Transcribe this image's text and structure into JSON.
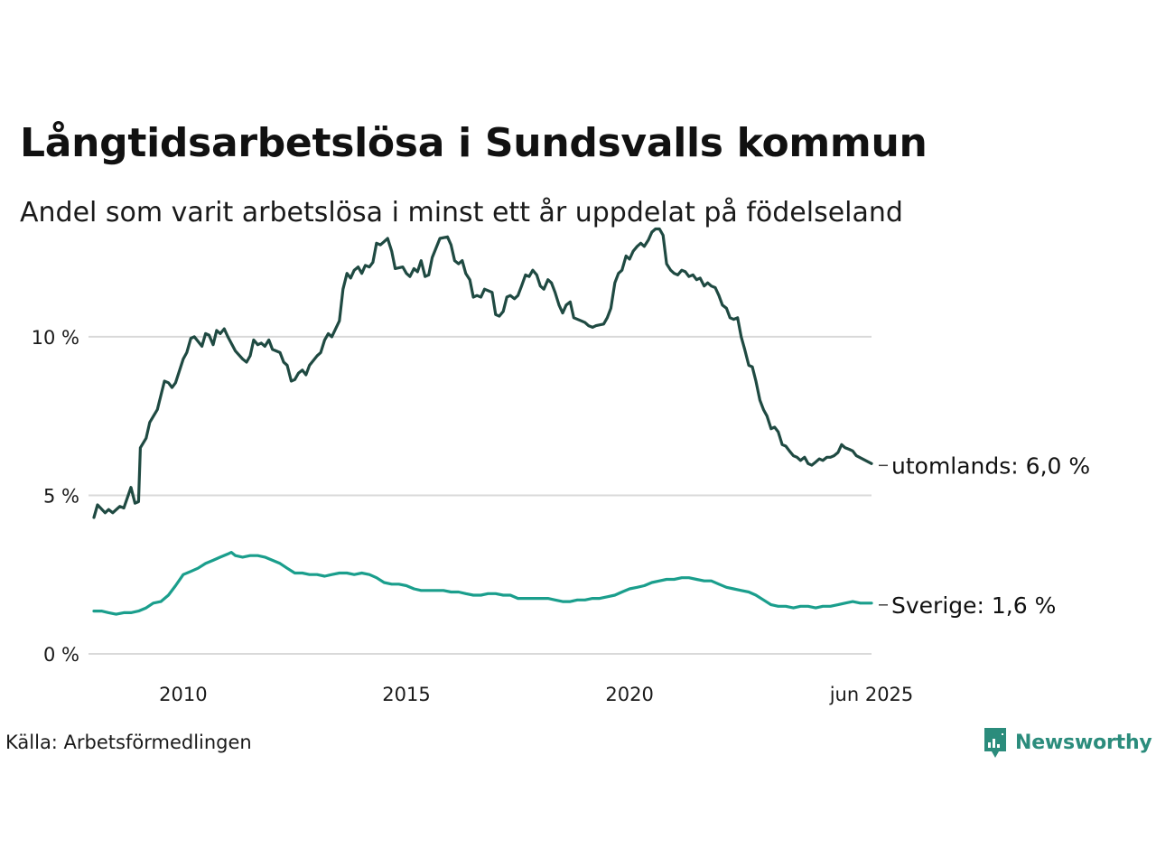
{
  "colors": {
    "utomlands": "#1f4a42",
    "sverige": "#1a9e8c",
    "grid": "#d9d9d9",
    "brand": "#2b8c7c"
  },
  "footer": {
    "source": "Källa: Arbetsförmedlingen",
    "brand": "Newsworthy",
    "brand_icon": "chart-bubble-icon"
  },
  "chart_data": {
    "type": "line",
    "title": "Långtidsarbetslösa i Sundsvalls kommun",
    "subtitle": "Andel som varit arbetslösa i minst ett år uppdelat på födelseland",
    "x_ticks": [
      {
        "x": 2010,
        "label": "2010"
      },
      {
        "x": 2015,
        "label": "2015"
      },
      {
        "x": 2020,
        "label": "2020"
      },
      {
        "x": 2025.42,
        "label": "jun 2025"
      }
    ],
    "y_ticks": [
      {
        "y": 0,
        "label": "0 %"
      },
      {
        "y": 5,
        "label": "5 %"
      },
      {
        "y": 10,
        "label": "10 %"
      }
    ],
    "xlim": [
      2008.0,
      2025.42
    ],
    "ylim": [
      0,
      13.5
    ],
    "grid": true,
    "series": [
      {
        "key": "utomlands",
        "end_label": "utomlands: 6,0 %",
        "points": [
          [
            2008.0,
            4.3
          ],
          [
            2008.08,
            4.7
          ],
          [
            2008.25,
            4.45
          ],
          [
            2008.33,
            4.55
          ],
          [
            2008.42,
            4.45
          ],
          [
            2008.58,
            4.65
          ],
          [
            2008.67,
            4.6
          ],
          [
            2008.83,
            5.25
          ],
          [
            2008.92,
            4.75
          ],
          [
            2009.0,
            4.8
          ],
          [
            2009.04,
            6.5
          ],
          [
            2009.17,
            6.8
          ],
          [
            2009.25,
            7.3
          ],
          [
            2009.42,
            7.7
          ],
          [
            2009.58,
            8.6
          ],
          [
            2009.67,
            8.55
          ],
          [
            2009.75,
            8.4
          ],
          [
            2009.83,
            8.55
          ],
          [
            2010.0,
            9.3
          ],
          [
            2010.08,
            9.5
          ],
          [
            2010.17,
            9.95
          ],
          [
            2010.25,
            10.0
          ],
          [
            2010.42,
            9.7
          ],
          [
            2010.5,
            10.1
          ],
          [
            2010.58,
            10.05
          ],
          [
            2010.67,
            9.75
          ],
          [
            2010.75,
            10.2
          ],
          [
            2010.83,
            10.1
          ],
          [
            2010.92,
            10.25
          ],
          [
            2011.0,
            10.0
          ],
          [
            2011.17,
            9.55
          ],
          [
            2011.33,
            9.3
          ],
          [
            2011.42,
            9.2
          ],
          [
            2011.5,
            9.4
          ],
          [
            2011.58,
            9.9
          ],
          [
            2011.67,
            9.75
          ],
          [
            2011.75,
            9.8
          ],
          [
            2011.83,
            9.7
          ],
          [
            2011.92,
            9.9
          ],
          [
            2012.0,
            9.6
          ],
          [
            2012.17,
            9.5
          ],
          [
            2012.25,
            9.2
          ],
          [
            2012.33,
            9.1
          ],
          [
            2012.42,
            8.6
          ],
          [
            2012.5,
            8.65
          ],
          [
            2012.58,
            8.85
          ],
          [
            2012.67,
            8.95
          ],
          [
            2012.75,
            8.8
          ],
          [
            2012.83,
            9.1
          ],
          [
            2013.0,
            9.4
          ],
          [
            2013.08,
            9.5
          ],
          [
            2013.17,
            9.9
          ],
          [
            2013.25,
            10.1
          ],
          [
            2013.33,
            10.0
          ],
          [
            2013.5,
            10.5
          ],
          [
            2013.58,
            11.5
          ],
          [
            2013.67,
            12.0
          ],
          [
            2013.75,
            11.85
          ],
          [
            2013.83,
            12.1
          ],
          [
            2013.92,
            12.2
          ],
          [
            2014.0,
            12.0
          ],
          [
            2014.08,
            12.25
          ],
          [
            2014.17,
            12.2
          ],
          [
            2014.25,
            12.35
          ],
          [
            2014.33,
            12.95
          ],
          [
            2014.42,
            12.9
          ],
          [
            2014.5,
            13.0
          ],
          [
            2014.58,
            13.1
          ],
          [
            2014.67,
            12.7
          ],
          [
            2014.75,
            12.15
          ],
          [
            2014.92,
            12.2
          ],
          [
            2015.0,
            12.0
          ],
          [
            2015.08,
            11.9
          ],
          [
            2015.17,
            12.15
          ],
          [
            2015.25,
            12.05
          ],
          [
            2015.33,
            12.4
          ],
          [
            2015.42,
            11.9
          ],
          [
            2015.5,
            11.95
          ],
          [
            2015.58,
            12.5
          ],
          [
            2015.75,
            13.1
          ],
          [
            2015.92,
            13.15
          ],
          [
            2016.0,
            12.9
          ],
          [
            2016.08,
            12.4
          ],
          [
            2016.17,
            12.3
          ],
          [
            2016.25,
            12.4
          ],
          [
            2016.33,
            12.0
          ],
          [
            2016.42,
            11.8
          ],
          [
            2016.5,
            11.25
          ],
          [
            2016.58,
            11.3
          ],
          [
            2016.67,
            11.25
          ],
          [
            2016.75,
            11.5
          ],
          [
            2016.92,
            11.4
          ],
          [
            2017.0,
            10.7
          ],
          [
            2017.08,
            10.65
          ],
          [
            2017.17,
            10.8
          ],
          [
            2017.25,
            11.25
          ],
          [
            2017.33,
            11.3
          ],
          [
            2017.42,
            11.2
          ],
          [
            2017.5,
            11.3
          ],
          [
            2017.58,
            11.6
          ],
          [
            2017.67,
            11.95
          ],
          [
            2017.75,
            11.9
          ],
          [
            2017.83,
            12.1
          ],
          [
            2017.92,
            11.95
          ],
          [
            2018.0,
            11.6
          ],
          [
            2018.08,
            11.5
          ],
          [
            2018.17,
            11.8
          ],
          [
            2018.25,
            11.7
          ],
          [
            2018.33,
            11.4
          ],
          [
            2018.42,
            11.0
          ],
          [
            2018.5,
            10.75
          ],
          [
            2018.58,
            11.0
          ],
          [
            2018.67,
            11.1
          ],
          [
            2018.75,
            10.6
          ],
          [
            2018.92,
            10.5
          ],
          [
            2019.0,
            10.45
          ],
          [
            2019.08,
            10.35
          ],
          [
            2019.17,
            10.3
          ],
          [
            2019.25,
            10.35
          ],
          [
            2019.42,
            10.4
          ],
          [
            2019.5,
            10.6
          ],
          [
            2019.58,
            10.9
          ],
          [
            2019.67,
            11.7
          ],
          [
            2019.75,
            12.0
          ],
          [
            2019.83,
            12.1
          ],
          [
            2019.92,
            12.55
          ],
          [
            2020.0,
            12.45
          ],
          [
            2020.08,
            12.7
          ],
          [
            2020.17,
            12.85
          ],
          [
            2020.25,
            12.95
          ],
          [
            2020.33,
            12.85
          ],
          [
            2020.42,
            13.05
          ],
          [
            2020.5,
            13.3
          ],
          [
            2020.58,
            13.4
          ],
          [
            2020.67,
            13.4
          ],
          [
            2020.75,
            13.2
          ],
          [
            2020.83,
            12.3
          ],
          [
            2020.92,
            12.1
          ],
          [
            2021.0,
            12.0
          ],
          [
            2021.08,
            11.95
          ],
          [
            2021.17,
            12.1
          ],
          [
            2021.25,
            12.05
          ],
          [
            2021.33,
            11.9
          ],
          [
            2021.42,
            11.95
          ],
          [
            2021.5,
            11.8
          ],
          [
            2021.58,
            11.85
          ],
          [
            2021.67,
            11.6
          ],
          [
            2021.75,
            11.7
          ],
          [
            2021.83,
            11.6
          ],
          [
            2021.92,
            11.55
          ],
          [
            2022.0,
            11.3
          ],
          [
            2022.08,
            11.0
          ],
          [
            2022.17,
            10.9
          ],
          [
            2022.25,
            10.6
          ],
          [
            2022.33,
            10.55
          ],
          [
            2022.42,
            10.6
          ],
          [
            2022.5,
            10.0
          ],
          [
            2022.58,
            9.6
          ],
          [
            2022.67,
            9.1
          ],
          [
            2022.75,
            9.05
          ],
          [
            2022.83,
            8.6
          ],
          [
            2022.92,
            8.0
          ],
          [
            2023.0,
            7.7
          ],
          [
            2023.08,
            7.5
          ],
          [
            2023.17,
            7.1
          ],
          [
            2023.25,
            7.15
          ],
          [
            2023.33,
            7.0
          ],
          [
            2023.42,
            6.6
          ],
          [
            2023.5,
            6.55
          ],
          [
            2023.58,
            6.4
          ],
          [
            2023.67,
            6.25
          ],
          [
            2023.75,
            6.2
          ],
          [
            2023.83,
            6.1
          ],
          [
            2023.92,
            6.2
          ],
          [
            2024.0,
            6.0
          ],
          [
            2024.08,
            5.95
          ],
          [
            2024.17,
            6.05
          ],
          [
            2024.25,
            6.15
          ],
          [
            2024.33,
            6.1
          ],
          [
            2024.42,
            6.2
          ],
          [
            2024.5,
            6.2
          ],
          [
            2024.58,
            6.25
          ],
          [
            2024.67,
            6.35
          ],
          [
            2024.75,
            6.6
          ],
          [
            2024.83,
            6.5
          ],
          [
            2024.92,
            6.45
          ],
          [
            2025.0,
            6.4
          ],
          [
            2025.08,
            6.25
          ],
          [
            2025.42,
            6.0
          ]
        ]
      },
      {
        "key": "sverige",
        "end_label": "Sverige: 1,6 %",
        "points": [
          [
            2008.0,
            1.35
          ],
          [
            2008.17,
            1.35
          ],
          [
            2008.33,
            1.3
          ],
          [
            2008.5,
            1.25
          ],
          [
            2008.67,
            1.3
          ],
          [
            2008.83,
            1.3
          ],
          [
            2009.0,
            1.35
          ],
          [
            2009.17,
            1.45
          ],
          [
            2009.33,
            1.6
          ],
          [
            2009.5,
            1.65
          ],
          [
            2009.67,
            1.85
          ],
          [
            2009.83,
            2.15
          ],
          [
            2010.0,
            2.5
          ],
          [
            2010.17,
            2.6
          ],
          [
            2010.33,
            2.7
          ],
          [
            2010.5,
            2.85
          ],
          [
            2010.67,
            2.95
          ],
          [
            2010.83,
            3.05
          ],
          [
            2011.0,
            3.15
          ],
          [
            2011.08,
            3.2
          ],
          [
            2011.17,
            3.1
          ],
          [
            2011.33,
            3.05
          ],
          [
            2011.5,
            3.1
          ],
          [
            2011.67,
            3.1
          ],
          [
            2011.83,
            3.05
          ],
          [
            2012.0,
            2.95
          ],
          [
            2012.17,
            2.85
          ],
          [
            2012.33,
            2.7
          ],
          [
            2012.5,
            2.55
          ],
          [
            2012.67,
            2.55
          ],
          [
            2012.83,
            2.5
          ],
          [
            2013.0,
            2.5
          ],
          [
            2013.17,
            2.45
          ],
          [
            2013.33,
            2.5
          ],
          [
            2013.5,
            2.55
          ],
          [
            2013.67,
            2.55
          ],
          [
            2013.83,
            2.5
          ],
          [
            2014.0,
            2.55
          ],
          [
            2014.17,
            2.5
          ],
          [
            2014.33,
            2.4
          ],
          [
            2014.5,
            2.25
          ],
          [
            2014.67,
            2.2
          ],
          [
            2014.83,
            2.2
          ],
          [
            2015.0,
            2.15
          ],
          [
            2015.17,
            2.05
          ],
          [
            2015.33,
            2.0
          ],
          [
            2015.5,
            2.0
          ],
          [
            2015.67,
            2.0
          ],
          [
            2015.83,
            2.0
          ],
          [
            2016.0,
            1.95
          ],
          [
            2016.17,
            1.95
          ],
          [
            2016.33,
            1.9
          ],
          [
            2016.5,
            1.85
          ],
          [
            2016.67,
            1.85
          ],
          [
            2016.83,
            1.9
          ],
          [
            2017.0,
            1.9
          ],
          [
            2017.17,
            1.85
          ],
          [
            2017.33,
            1.85
          ],
          [
            2017.5,
            1.75
          ],
          [
            2017.67,
            1.75
          ],
          [
            2017.83,
            1.75
          ],
          [
            2018.0,
            1.75
          ],
          [
            2018.17,
            1.75
          ],
          [
            2018.33,
            1.7
          ],
          [
            2018.5,
            1.65
          ],
          [
            2018.67,
            1.65
          ],
          [
            2018.83,
            1.7
          ],
          [
            2019.0,
            1.7
          ],
          [
            2019.17,
            1.75
          ],
          [
            2019.33,
            1.75
          ],
          [
            2019.5,
            1.8
          ],
          [
            2019.67,
            1.85
          ],
          [
            2019.83,
            1.95
          ],
          [
            2020.0,
            2.05
          ],
          [
            2020.17,
            2.1
          ],
          [
            2020.33,
            2.15
          ],
          [
            2020.5,
            2.25
          ],
          [
            2020.67,
            2.3
          ],
          [
            2020.83,
            2.35
          ],
          [
            2021.0,
            2.35
          ],
          [
            2021.17,
            2.4
          ],
          [
            2021.33,
            2.4
          ],
          [
            2021.5,
            2.35
          ],
          [
            2021.67,
            2.3
          ],
          [
            2021.83,
            2.3
          ],
          [
            2022.0,
            2.2
          ],
          [
            2022.17,
            2.1
          ],
          [
            2022.33,
            2.05
          ],
          [
            2022.5,
            2.0
          ],
          [
            2022.67,
            1.95
          ],
          [
            2022.83,
            1.85
          ],
          [
            2023.0,
            1.7
          ],
          [
            2023.17,
            1.55
          ],
          [
            2023.33,
            1.5
          ],
          [
            2023.5,
            1.5
          ],
          [
            2023.67,
            1.45
          ],
          [
            2023.83,
            1.5
          ],
          [
            2024.0,
            1.5
          ],
          [
            2024.17,
            1.45
          ],
          [
            2024.33,
            1.5
          ],
          [
            2024.5,
            1.5
          ],
          [
            2024.67,
            1.55
          ],
          [
            2024.83,
            1.6
          ],
          [
            2025.0,
            1.65
          ],
          [
            2025.17,
            1.6
          ],
          [
            2025.42,
            1.6
          ]
        ]
      }
    ]
  }
}
